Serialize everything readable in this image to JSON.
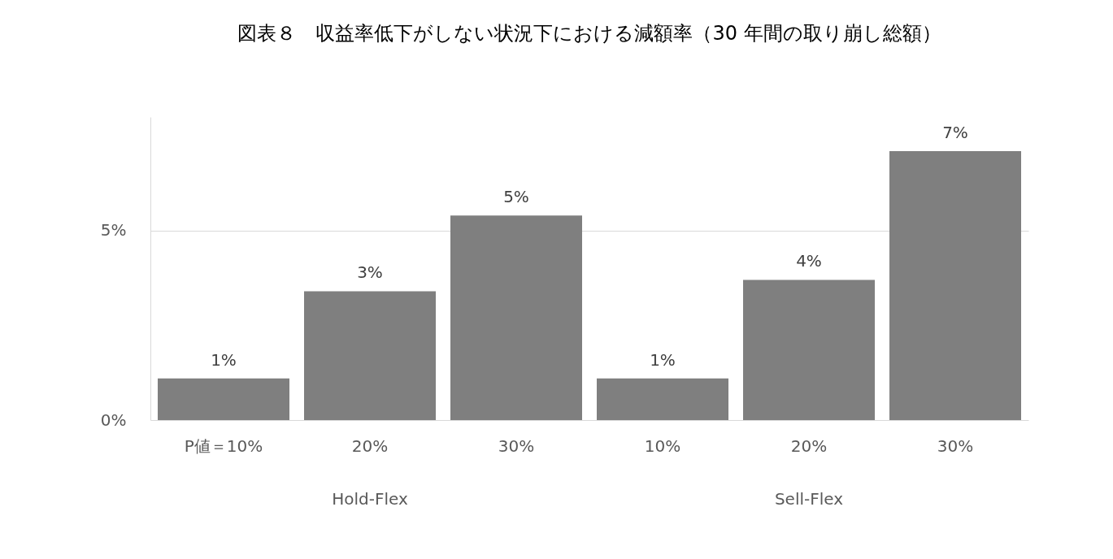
{
  "chart_data": {
    "type": "bar",
    "title": "図表８　収益率低下がしない状況下における減額率（30 年間の取り崩し総額）",
    "categories": [
      "P値＝10%",
      "20%",
      "30%",
      "10%",
      "20%",
      "30%"
    ],
    "values": [
      1.1,
      3.4,
      5.4,
      1.1,
      3.7,
      7.1
    ],
    "value_labels": [
      "1%",
      "3%",
      "5%",
      "1%",
      "4%",
      "7%"
    ],
    "color": "#7f7f7f",
    "ylim": [
      0,
      8
    ],
    "yticks": [
      {
        "value": 0,
        "label": "0%"
      },
      {
        "value": 5,
        "label": "5%"
      }
    ],
    "grid": "y",
    "annotations": [
      "Hold-Flex",
      "Sell-Flex"
    ]
  }
}
